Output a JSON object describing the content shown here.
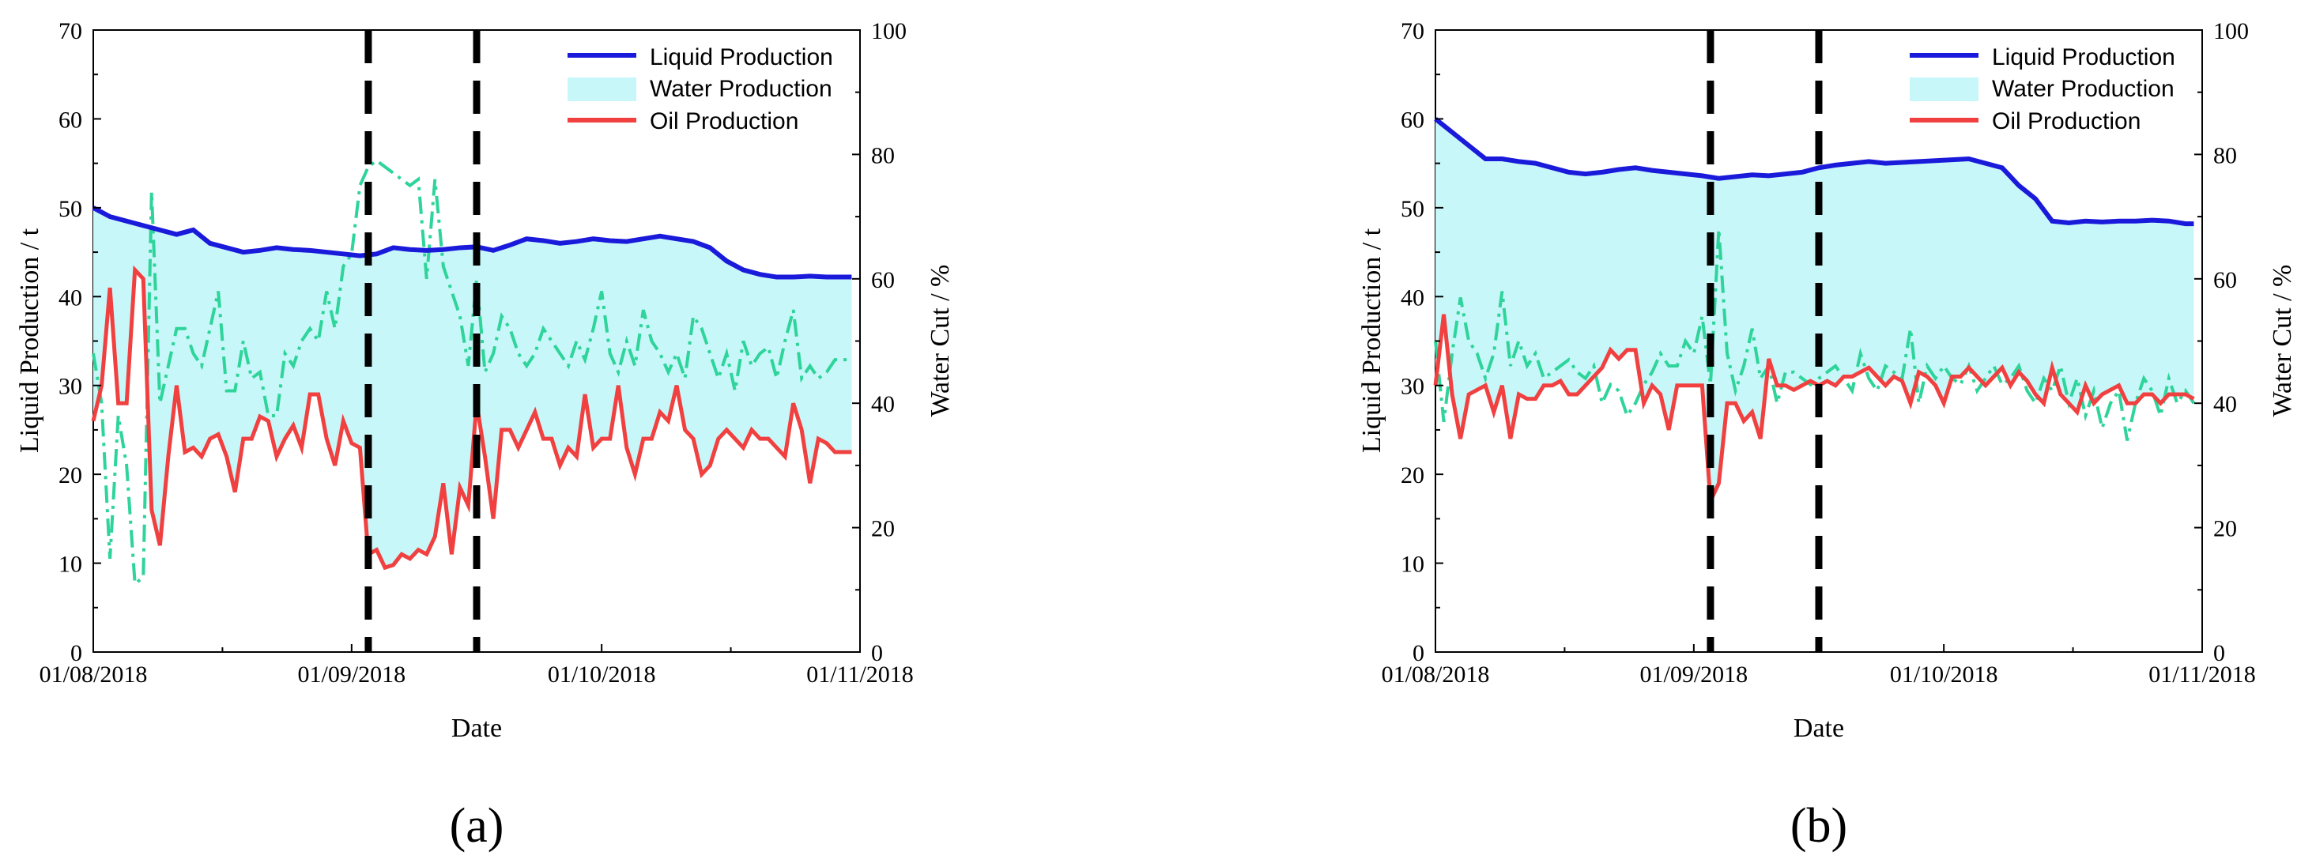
{
  "figure": {
    "subfigure_labels": [
      "(a)",
      "(b)"
    ]
  },
  "colors": {
    "liquid": "#1a1adb",
    "water_fill": "#c8f7f9",
    "oil": "#f04040",
    "water_cut": "#2ed49a",
    "marker": "#000000",
    "axis": "#000000"
  },
  "chart_data": [
    {
      "type": "line",
      "panel_label": "(a)",
      "xlabel": "Date",
      "ylabel": "Liquid Production / t",
      "y2label": "Water Cut / %",
      "x_ticks": [
        "01/08/2018",
        "01/09/2018",
        "01/10/2018",
        "01/11/2018"
      ],
      "x_tick_days": [
        0,
        31,
        61,
        92
      ],
      "xlim": [
        0,
        92
      ],
      "ylim": [
        0,
        70
      ],
      "y_ticks": [
        "0",
        "10",
        "20",
        "30",
        "40",
        "50",
        "60",
        "70"
      ],
      "y2lim": [
        0,
        100
      ],
      "y2_ticks": [
        "0",
        "20",
        "40",
        "60",
        "80",
        "100"
      ],
      "legend": [
        "Liquid Production",
        "Water Production",
        "Oil Production"
      ],
      "legend_position": "top-right",
      "vertical_markers_days": [
        33,
        46
      ],
      "series": [
        {
          "name": "Liquid Production",
          "axis": "left",
          "x": [
            0,
            2,
            4,
            6,
            8,
            10,
            12,
            14,
            16,
            18,
            20,
            22,
            24,
            26,
            28,
            30,
            32,
            34,
            36,
            38,
            40,
            42,
            44,
            46,
            48,
            50,
            52,
            54,
            56,
            58,
            60,
            62,
            64,
            66,
            68,
            70,
            72,
            74,
            76,
            78,
            80,
            82,
            84,
            86,
            88,
            90,
            91
          ],
          "y": [
            50,
            49,
            48.5,
            48,
            47.5,
            47,
            47.5,
            46,
            45.5,
            45,
            45.2,
            45.5,
            45.3,
            45.2,
            45,
            44.8,
            44.6,
            44.8,
            45.5,
            45.3,
            45.2,
            45.3,
            45.5,
            45.6,
            45.2,
            45.8,
            46.5,
            46.3,
            46,
            46.2,
            46.5,
            46.3,
            46.2,
            46.5,
            46.8,
            46.5,
            46.2,
            45.5,
            44,
            43,
            42.5,
            42.2,
            42.2,
            42.3,
            42.2,
            42.2,
            42.2
          ]
        },
        {
          "name": "Oil Production",
          "axis": "left",
          "x": [
            0,
            1,
            2,
            3,
            4,
            5,
            6,
            7,
            8,
            9,
            10,
            11,
            12,
            13,
            14,
            15,
            16,
            17,
            18,
            19,
            20,
            21,
            22,
            23,
            24,
            25,
            26,
            27,
            28,
            29,
            30,
            31,
            32,
            33,
            34,
            35,
            36,
            37,
            38,
            39,
            40,
            41,
            42,
            43,
            44,
            45,
            46,
            47,
            48,
            49,
            50,
            51,
            52,
            53,
            54,
            55,
            56,
            57,
            58,
            59,
            60,
            61,
            62,
            63,
            64,
            65,
            66,
            67,
            68,
            69,
            70,
            71,
            72,
            73,
            74,
            75,
            76,
            77,
            78,
            79,
            80,
            81,
            82,
            83,
            84,
            85,
            86,
            87,
            88,
            89,
            90,
            91
          ],
          "y": [
            26,
            30,
            41,
            28,
            28,
            43,
            42,
            16,
            12,
            22,
            30,
            22.5,
            23,
            22,
            24,
            24.5,
            22,
            18,
            24,
            24,
            26.5,
            26,
            22,
            24,
            25.5,
            23,
            29,
            29,
            24,
            21,
            26,
            23.5,
            23,
            11,
            11.5,
            9.5,
            9.8,
            11,
            10.5,
            11.5,
            11,
            13,
            19,
            11,
            18.5,
            16.5,
            28,
            22,
            15,
            25,
            25,
            23,
            25,
            27,
            24,
            24,
            21,
            23,
            22,
            29,
            23,
            24,
            24,
            30,
            23,
            20,
            24,
            24,
            27,
            26,
            30,
            25,
            24,
            20,
            21,
            24,
            25,
            24,
            23,
            25,
            24,
            24,
            23,
            22,
            28,
            25,
            19,
            24,
            23.5,
            22.5,
            22.5,
            22.5
          ]
        },
        {
          "name": "Water Cut",
          "axis": "right",
          "x": [
            0,
            1,
            2,
            3,
            4,
            5,
            6,
            7,
            8,
            9,
            10,
            11,
            12,
            13,
            14,
            15,
            16,
            17,
            18,
            19,
            20,
            21,
            22,
            23,
            24,
            25,
            26,
            27,
            28,
            29,
            30,
            31,
            32,
            33,
            34,
            35,
            36,
            37,
            38,
            39,
            40,
            41,
            42,
            43,
            44,
            45,
            46,
            47,
            48,
            49,
            50,
            51,
            52,
            53,
            54,
            55,
            56,
            57,
            58,
            59,
            60,
            61,
            62,
            63,
            64,
            65,
            66,
            67,
            68,
            69,
            70,
            71,
            72,
            73,
            74,
            75,
            76,
            77,
            78,
            79,
            80,
            81,
            82,
            83,
            84,
            85,
            86,
            87,
            88,
            89,
            90,
            91
          ],
          "y": [
            48,
            40,
            15,
            38,
            30,
            11,
            12,
            74,
            40,
            46,
            52,
            52,
            48,
            46,
            52,
            58,
            42,
            42,
            50,
            44,
            45,
            38,
            38,
            48,
            46,
            50,
            52,
            50,
            58,
            52,
            62,
            64,
            75,
            78,
            79,
            78,
            77,
            76,
            75,
            76,
            60,
            76,
            62,
            58,
            54,
            46,
            60,
            45,
            48,
            54,
            52,
            48,
            46,
            48,
            52,
            50,
            48,
            46,
            50,
            47,
            52,
            58,
            48,
            45,
            50,
            46,
            55,
            50,
            48,
            45,
            48,
            44,
            54,
            52,
            48,
            44,
            48,
            42,
            50,
            46,
            48,
            49,
            44,
            50,
            55,
            44,
            46,
            44,
            45,
            47,
            47,
            47
          ]
        }
      ]
    },
    {
      "type": "line",
      "panel_label": "(b)",
      "xlabel": "Date",
      "ylabel": "Liquid Production / t",
      "y2label": "Water Cut / %",
      "x_ticks": [
        "01/08/2018",
        "01/09/2018",
        "01/10/2018",
        "01/11/2018"
      ],
      "x_tick_days": [
        0,
        31,
        61,
        92
      ],
      "xlim": [
        0,
        92
      ],
      "ylim": [
        0,
        70
      ],
      "y_ticks": [
        "0",
        "10",
        "20",
        "30",
        "40",
        "50",
        "60",
        "70"
      ],
      "y2lim": [
        0,
        100
      ],
      "y2_ticks": [
        "0",
        "20",
        "40",
        "60",
        "80",
        "100"
      ],
      "legend": [
        "Liquid Production",
        "Water Production",
        "Oil Production"
      ],
      "legend_position": "top-right",
      "vertical_markers_days": [
        33,
        46
      ],
      "series": [
        {
          "name": "Liquid Production",
          "axis": "left",
          "x": [
            0,
            2,
            4,
            6,
            8,
            10,
            12,
            14,
            16,
            18,
            20,
            22,
            24,
            26,
            28,
            30,
            32,
            34,
            36,
            38,
            40,
            42,
            44,
            46,
            48,
            50,
            52,
            54,
            56,
            58,
            60,
            62,
            64,
            66,
            68,
            70,
            72,
            74,
            76,
            78,
            80,
            82,
            84,
            86,
            88,
            90,
            91
          ],
          "y": [
            60,
            58.5,
            57,
            55.5,
            55.5,
            55.2,
            55,
            54.5,
            54,
            53.8,
            54,
            54.3,
            54.5,
            54.2,
            54,
            53.8,
            53.6,
            53.3,
            53.5,
            53.7,
            53.6,
            53.8,
            54,
            54.5,
            54.8,
            55,
            55.2,
            55,
            55.1,
            55.2,
            55.3,
            55.4,
            55.5,
            55,
            54.5,
            52.5,
            51,
            48.5,
            48.3,
            48.5,
            48.4,
            48.5,
            48.5,
            48.6,
            48.5,
            48.2,
            48.2
          ]
        },
        {
          "name": "Oil Production",
          "axis": "left",
          "x": [
            0,
            1,
            2,
            3,
            4,
            5,
            6,
            7,
            8,
            9,
            10,
            11,
            12,
            13,
            14,
            15,
            16,
            17,
            18,
            19,
            20,
            21,
            22,
            23,
            24,
            25,
            26,
            27,
            28,
            29,
            30,
            31,
            32,
            33,
            34,
            35,
            36,
            37,
            38,
            39,
            40,
            41,
            42,
            43,
            44,
            45,
            46,
            47,
            48,
            49,
            50,
            51,
            52,
            53,
            54,
            55,
            56,
            57,
            58,
            59,
            60,
            61,
            62,
            63,
            64,
            65,
            66,
            67,
            68,
            69,
            70,
            71,
            72,
            73,
            74,
            75,
            76,
            77,
            78,
            79,
            80,
            81,
            82,
            83,
            84,
            85,
            86,
            87,
            88,
            89,
            90,
            91
          ],
          "y": [
            30,
            38,
            29,
            24,
            29,
            29.5,
            30,
            27,
            30,
            24,
            29,
            28.5,
            28.5,
            30,
            30,
            30.5,
            29,
            29,
            30,
            31,
            32,
            34,
            33,
            34,
            34,
            28,
            30,
            29,
            25,
            30,
            30,
            30,
            30,
            17,
            19,
            28,
            28,
            26,
            27,
            24,
            33,
            30,
            30,
            29.5,
            30,
            30.5,
            30,
            30.5,
            30,
            31,
            31,
            31.5,
            32,
            31,
            30,
            31,
            30.5,
            28,
            31.5,
            31,
            30,
            28,
            31,
            31,
            32,
            31,
            30,
            31,
            32,
            30,
            31.5,
            30.5,
            29,
            28,
            32,
            29,
            28,
            27,
            30,
            28,
            29,
            29.5,
            30,
            28,
            28,
            29,
            29,
            28,
            29,
            29,
            29,
            28.5
          ]
        },
        {
          "name": "Water Cut",
          "axis": "right",
          "x": [
            0,
            1,
            2,
            3,
            4,
            5,
            6,
            7,
            8,
            9,
            10,
            11,
            12,
            13,
            14,
            15,
            16,
            17,
            18,
            19,
            20,
            21,
            22,
            23,
            24,
            25,
            26,
            27,
            28,
            29,
            30,
            31,
            32,
            33,
            34,
            35,
            36,
            37,
            38,
            39,
            40,
            41,
            42,
            43,
            44,
            45,
            46,
            47,
            48,
            49,
            50,
            51,
            52,
            53,
            54,
            55,
            56,
            57,
            58,
            59,
            60,
            61,
            62,
            63,
            64,
            65,
            66,
            67,
            68,
            69,
            70,
            71,
            72,
            73,
            74,
            75,
            76,
            77,
            78,
            79,
            80,
            81,
            82,
            83,
            84,
            85,
            86,
            87,
            88,
            89,
            90,
            91
          ],
          "y": [
            50,
            37,
            48,
            57,
            50,
            48,
            44,
            48,
            58,
            46,
            50,
            46,
            48,
            44,
            45,
            46,
            47,
            45,
            44,
            46,
            40,
            43,
            42,
            38,
            40,
            43,
            45,
            48,
            46,
            46,
            50,
            48,
            54,
            43,
            68,
            48,
            42,
            46,
            52,
            44,
            46,
            40,
            45,
            45,
            44,
            43,
            44,
            45,
            46,
            44,
            42,
            48,
            44,
            42,
            46,
            45,
            44,
            52,
            40,
            46,
            44,
            46,
            44,
            43,
            46,
            42,
            44,
            46,
            43,
            44,
            46,
            42,
            40,
            44,
            42,
            46,
            40,
            44,
            38,
            42,
            36,
            40,
            42,
            34,
            40,
            44,
            42,
            38,
            44,
            40,
            42,
            40
          ]
        }
      ]
    }
  ]
}
